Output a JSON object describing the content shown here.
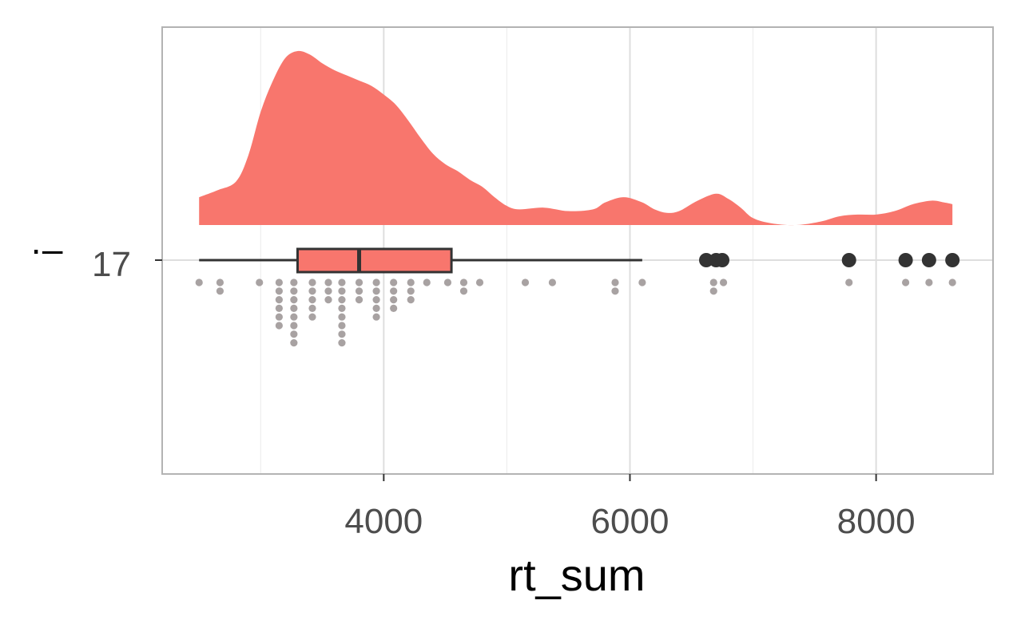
{
  "chart_data": {
    "type": "raincloud",
    "xlabel": "rt_sum",
    "y_axis_title": "·–",
    "y_category": "17",
    "xlim": [
      2200,
      8950
    ],
    "x_ticks": [
      4000,
      6000,
      8000
    ],
    "x_tick_labels": [
      "4000",
      "6000",
      "8000"
    ],
    "x_minor_ticks": [
      3000,
      5000,
      7000
    ],
    "grid": true,
    "fill_color": "#F8766D",
    "outline_color": "#333333",
    "dot_color": "#A8A2A2",
    "box": {
      "min": 2500,
      "q1": 3300,
      "median": 3800,
      "q3": 4550,
      "whisker_high": 6100
    },
    "outliers": [
      6620,
      6700,
      6750,
      7780,
      8240,
      8430,
      8620
    ],
    "density": [
      [
        2500,
        0.16
      ],
      [
        2650,
        0.2
      ],
      [
        2800,
        0.25
      ],
      [
        2900,
        0.4
      ],
      [
        3000,
        0.65
      ],
      [
        3100,
        0.83
      ],
      [
        3200,
        0.96
      ],
      [
        3300,
        1.0
      ],
      [
        3400,
        0.98
      ],
      [
        3500,
        0.93
      ],
      [
        3600,
        0.89
      ],
      [
        3700,
        0.86
      ],
      [
        3800,
        0.83
      ],
      [
        3900,
        0.8
      ],
      [
        4000,
        0.75
      ],
      [
        4100,
        0.69
      ],
      [
        4200,
        0.6
      ],
      [
        4300,
        0.5
      ],
      [
        4400,
        0.41
      ],
      [
        4500,
        0.35
      ],
      [
        4600,
        0.31
      ],
      [
        4700,
        0.26
      ],
      [
        4800,
        0.22
      ],
      [
        4900,
        0.16
      ],
      [
        5000,
        0.11
      ],
      [
        5100,
        0.09
      ],
      [
        5300,
        0.1
      ],
      [
        5500,
        0.08
      ],
      [
        5700,
        0.09
      ],
      [
        5800,
        0.13
      ],
      [
        5950,
        0.16
      ],
      [
        6100,
        0.13
      ],
      [
        6200,
        0.09
      ],
      [
        6300,
        0.07
      ],
      [
        6400,
        0.08
      ],
      [
        6550,
        0.14
      ],
      [
        6700,
        0.18
      ],
      [
        6800,
        0.15
      ],
      [
        6900,
        0.1
      ],
      [
        7000,
        0.04
      ],
      [
        7150,
        0.01
      ],
      [
        7350,
        0.0
      ],
      [
        7550,
        0.02
      ],
      [
        7700,
        0.05
      ],
      [
        7850,
        0.06
      ],
      [
        8000,
        0.06
      ],
      [
        8150,
        0.08
      ],
      [
        8300,
        0.12
      ],
      [
        8450,
        0.14
      ],
      [
        8550,
        0.13
      ],
      [
        8620,
        0.12
      ]
    ],
    "dots": [
      {
        "x": 2500,
        "n": 1
      },
      {
        "x": 2670,
        "n": 2
      },
      {
        "x": 2990,
        "n": 1
      },
      {
        "x": 3150,
        "n": 6
      },
      {
        "x": 3270,
        "n": 8
      },
      {
        "x": 3420,
        "n": 5
      },
      {
        "x": 3550,
        "n": 3
      },
      {
        "x": 3660,
        "n": 8
      },
      {
        "x": 3800,
        "n": 3
      },
      {
        "x": 3940,
        "n": 5
      },
      {
        "x": 4080,
        "n": 4
      },
      {
        "x": 4220,
        "n": 3
      },
      {
        "x": 4350,
        "n": 1
      },
      {
        "x": 4520,
        "n": 1
      },
      {
        "x": 4650,
        "n": 2
      },
      {
        "x": 4780,
        "n": 1
      },
      {
        "x": 5150,
        "n": 1
      },
      {
        "x": 5370,
        "n": 1
      },
      {
        "x": 5880,
        "n": 2
      },
      {
        "x": 6100,
        "n": 1
      },
      {
        "x": 6680,
        "n": 2
      },
      {
        "x": 6760,
        "n": 1
      },
      {
        "x": 7780,
        "n": 1
      },
      {
        "x": 8240,
        "n": 1
      },
      {
        "x": 8430,
        "n": 1
      },
      {
        "x": 8620,
        "n": 1
      }
    ]
  }
}
